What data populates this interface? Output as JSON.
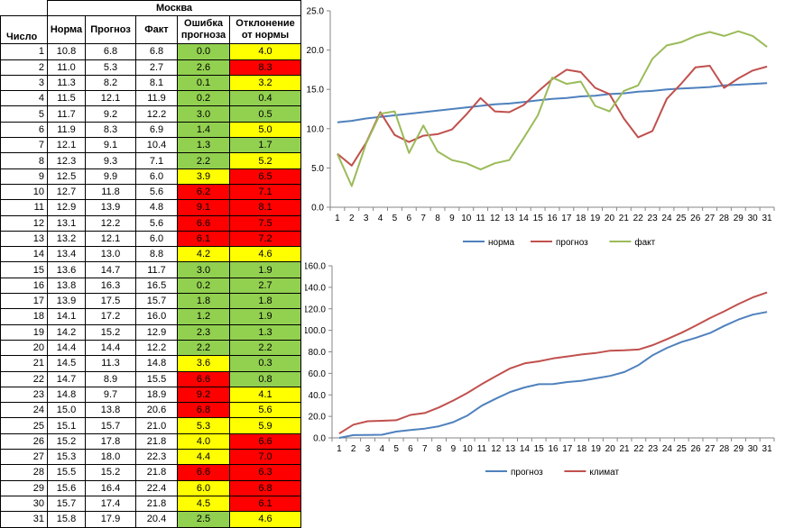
{
  "table": {
    "city": "Москва",
    "headers": [
      "Число",
      "Норма",
      "Прогноз",
      "Факт",
      "Ошибка прогноза",
      "Отклонение от нормы"
    ],
    "rows": [
      [
        "1",
        "10.8",
        "6.8",
        "6.8",
        "0.0",
        "4.0"
      ],
      [
        "2",
        "11.0",
        "5.3",
        "2.7",
        "2.6",
        "8.3"
      ],
      [
        "3",
        "11.3",
        "8.2",
        "8.1",
        "0.1",
        "3.2"
      ],
      [
        "4",
        "11.5",
        "12.1",
        "11.9",
        "0.2",
        "0.4"
      ],
      [
        "5",
        "11.7",
        "9.2",
        "12.2",
        "3.0",
        "0.5"
      ],
      [
        "6",
        "11.9",
        "8.3",
        "6.9",
        "1.4",
        "5.0"
      ],
      [
        "7",
        "12.1",
        "9.1",
        "10.4",
        "1.3",
        "1.7"
      ],
      [
        "8",
        "12.3",
        "9.3",
        "7.1",
        "2.2",
        "5.2"
      ],
      [
        "9",
        "12.5",
        "9.9",
        "6.0",
        "3.9",
        "6.5"
      ],
      [
        "10",
        "12.7",
        "11.8",
        "5.6",
        "6.2",
        "7.1"
      ],
      [
        "11",
        "12.9",
        "13.9",
        "4.8",
        "9.1",
        "8.1"
      ],
      [
        "12",
        "13.1",
        "12.2",
        "5.6",
        "6.6",
        "7.5"
      ],
      [
        "13",
        "13.2",
        "12.1",
        "6.0",
        "6.1",
        "7.2"
      ],
      [
        "14",
        "13.4",
        "13.0",
        "8.8",
        "4.2",
        "4.6"
      ],
      [
        "15",
        "13.6",
        "14.7",
        "11.7",
        "3.0",
        "1.9"
      ],
      [
        "16",
        "13.8",
        "16.3",
        "16.5",
        "0.2",
        "2.7"
      ],
      [
        "17",
        "13.9",
        "17.5",
        "15.7",
        "1.8",
        "1.8"
      ],
      [
        "18",
        "14.1",
        "17.2",
        "16.0",
        "1.2",
        "1.9"
      ],
      [
        "19",
        "14.2",
        "15.2",
        "12.9",
        "2.3",
        "1.3"
      ],
      [
        "20",
        "14.4",
        "14.4",
        "12.2",
        "2.2",
        "2.2"
      ],
      [
        "21",
        "14.5",
        "11.3",
        "14.8",
        "3.6",
        "0.3"
      ],
      [
        "22",
        "14.7",
        "8.9",
        "15.5",
        "6.6",
        "0.8"
      ],
      [
        "23",
        "14.8",
        "9.7",
        "18.9",
        "9.2",
        "4.1"
      ],
      [
        "24",
        "15.0",
        "13.8",
        "20.6",
        "6.8",
        "5.6"
      ],
      [
        "25",
        "15.1",
        "15.7",
        "21.0",
        "5.3",
        "5.9"
      ],
      [
        "26",
        "15.2",
        "17.8",
        "21.8",
        "4.0",
        "6.6"
      ],
      [
        "27",
        "15.3",
        "18.0",
        "22.3",
        "4.4",
        "7.0"
      ],
      [
        "28",
        "15.5",
        "15.2",
        "21.8",
        "6.6",
        "6.3"
      ],
      [
        "29",
        "15.6",
        "16.4",
        "22.4",
        "6.0",
        "6.8"
      ],
      [
        "30",
        "15.7",
        "17.4",
        "21.8",
        "4.5",
        "6.1"
      ],
      [
        "31",
        "15.8",
        "17.9",
        "20.4",
        "2.5",
        "4.6"
      ]
    ],
    "error_colors": [
      "g",
      "g",
      "g",
      "g",
      "g",
      "g",
      "g",
      "g",
      "y",
      "r",
      "r",
      "r",
      "r",
      "y",
      "g",
      "g",
      "g",
      "g",
      "g",
      "g",
      "y",
      "r",
      "r",
      "r",
      "y",
      "y",
      "y",
      "r",
      "y",
      "y",
      "g"
    ],
    "deviation_colors": [
      "y",
      "r",
      "y",
      "g",
      "g",
      "y",
      "g",
      "y",
      "r",
      "r",
      "r",
      "r",
      "r",
      "y",
      "g",
      "g",
      "g",
      "g",
      "g",
      "g",
      "g",
      "g",
      "y",
      "y",
      "y",
      "r",
      "r",
      "r",
      "r",
      "r",
      "y"
    ]
  },
  "colors": {
    "green": "#92d050",
    "yellow": "#ffff00",
    "red": "#ff0000"
  },
  "chart_data": [
    {
      "type": "line",
      "x": [
        1,
        2,
        3,
        4,
        5,
        6,
        7,
        8,
        9,
        10,
        11,
        12,
        13,
        14,
        15,
        16,
        17,
        18,
        19,
        20,
        21,
        22,
        23,
        24,
        25,
        26,
        27,
        28,
        29,
        30,
        31
      ],
      "ylim": [
        0,
        25
      ],
      "yticks": [
        "0.0",
        "5.0",
        "10.0",
        "15.0",
        "20.0",
        "25.0"
      ],
      "legend_position": "bottom",
      "grid": false,
      "series": [
        {
          "name": "норма",
          "color": "#4f81bd",
          "values": [
            10.8,
            11.0,
            11.3,
            11.5,
            11.7,
            11.9,
            12.1,
            12.3,
            12.5,
            12.7,
            12.9,
            13.1,
            13.2,
            13.4,
            13.6,
            13.8,
            13.9,
            14.1,
            14.2,
            14.4,
            14.5,
            14.7,
            14.8,
            15.0,
            15.1,
            15.2,
            15.3,
            15.5,
            15.6,
            15.7,
            15.8
          ]
        },
        {
          "name": "прогноз",
          "color": "#c0504d",
          "values": [
            6.8,
            5.3,
            8.2,
            12.1,
            9.2,
            8.3,
            9.1,
            9.3,
            9.9,
            11.8,
            13.9,
            12.2,
            12.1,
            13.0,
            14.7,
            16.3,
            17.5,
            17.2,
            15.2,
            14.4,
            11.3,
            8.9,
            9.7,
            13.8,
            15.7,
            17.8,
            18.0,
            15.2,
            16.4,
            17.4,
            17.9
          ]
        },
        {
          "name": "факт",
          "color": "#9bbb59",
          "values": [
            6.8,
            2.7,
            8.1,
            11.9,
            12.2,
            6.9,
            10.4,
            7.1,
            6.0,
            5.6,
            4.8,
            5.6,
            6.0,
            8.8,
            11.7,
            16.5,
            15.7,
            16.0,
            12.9,
            12.2,
            14.8,
            15.5,
            18.9,
            20.6,
            21.0,
            21.8,
            22.3,
            21.8,
            22.4,
            21.8,
            20.4
          ]
        }
      ]
    },
    {
      "type": "line",
      "x": [
        1,
        2,
        3,
        4,
        5,
        6,
        7,
        8,
        9,
        10,
        11,
        12,
        13,
        14,
        15,
        16,
        17,
        18,
        19,
        20,
        21,
        22,
        23,
        24,
        25,
        26,
        27,
        28,
        29,
        30,
        31
      ],
      "ylim": [
        0,
        160
      ],
      "yticks": [
        "0.0",
        "20.0",
        "40.0",
        "60.0",
        "80.0",
        "100.0",
        "120.0",
        "140.0",
        "160.0"
      ],
      "legend_position": "bottom",
      "grid": false,
      "series": [
        {
          "name": "прогноз",
          "color": "#4f81bd",
          "values": [
            0.0,
            2.6,
            2.7,
            2.9,
            5.9,
            7.3,
            8.6,
            10.8,
            14.7,
            20.9,
            30.0,
            36.6,
            42.7,
            46.9,
            49.9,
            50.1,
            51.9,
            53.1,
            55.4,
            57.6,
            61.2,
            67.8,
            77.0,
            83.8,
            89.1,
            93.1,
            97.5,
            104.1,
            110.1,
            114.6,
            117.1
          ]
        },
        {
          "name": "климат",
          "color": "#c0504d",
          "values": [
            4.0,
            12.3,
            15.5,
            15.9,
            16.4,
            21.4,
            23.1,
            28.3,
            34.8,
            41.9,
            50.0,
            57.5,
            64.7,
            69.3,
            71.2,
            73.9,
            75.7,
            77.6,
            78.9,
            81.1,
            81.4,
            82.2,
            86.3,
            91.9,
            97.8,
            104.4,
            111.4,
            117.7,
            124.5,
            130.6,
            135.2
          ]
        }
      ]
    }
  ]
}
